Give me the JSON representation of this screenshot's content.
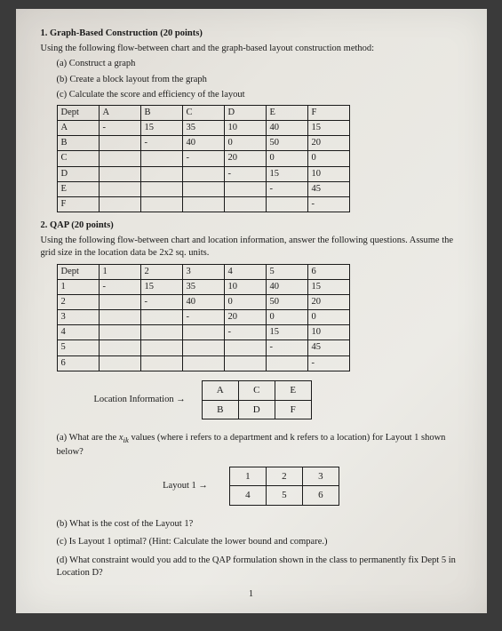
{
  "q1": {
    "number": "1.",
    "title": "Graph-Based Construction (20 points)",
    "intro": "Using the following flow-between chart and the graph-based layout construction method:",
    "parts": {
      "a": "(a) Construct a graph",
      "b": "(b) Create a block layout from the graph",
      "c": "(c) Calculate the score and efficiency of the layout"
    },
    "table": {
      "header": [
        "Dept",
        "A",
        "B",
        "C",
        "D",
        "E",
        "F"
      ],
      "rows": [
        [
          "A",
          "-",
          "15",
          "35",
          "10",
          "40",
          "15"
        ],
        [
          "B",
          "",
          "-",
          "40",
          "0",
          "50",
          "20"
        ],
        [
          "C",
          "",
          "",
          "-",
          "20",
          "0",
          "0"
        ],
        [
          "D",
          "",
          "",
          "",
          "-",
          "15",
          "10"
        ],
        [
          "E",
          "",
          "",
          "",
          "",
          "-",
          "45"
        ],
        [
          "F",
          "",
          "",
          "",
          "",
          "",
          "-"
        ]
      ]
    }
  },
  "q2": {
    "number": "2.",
    "title": "QAP (20 points)",
    "intro": "Using the following flow-between chart and location information, answer the following questions. Assume the grid size in the location data be 2x2 sq. units.",
    "table": {
      "header": [
        "Dept",
        "1",
        "2",
        "3",
        "4",
        "5",
        "6"
      ],
      "rows": [
        [
          "1",
          "-",
          "15",
          "35",
          "10",
          "40",
          "15"
        ],
        [
          "2",
          "",
          "-",
          "40",
          "0",
          "50",
          "20"
        ],
        [
          "3",
          "",
          "",
          "-",
          "20",
          "0",
          "0"
        ],
        [
          "4",
          "",
          "",
          "",
          "-",
          "15",
          "10"
        ],
        [
          "5",
          "",
          "",
          "",
          "",
          "-",
          "45"
        ],
        [
          "6",
          "",
          "",
          "",
          "",
          "",
          "-"
        ]
      ]
    },
    "loc_label": "Location Information →",
    "loc_grid": [
      [
        "A",
        "C",
        "E"
      ],
      [
        "B",
        "D",
        "F"
      ]
    ],
    "parts": {
      "a_pre": "(a) What are the ",
      "a_var": "x",
      "a_sub": "ik",
      "a_post": " values (where i refers to a department and k refers to a location) for Layout 1 shown below?",
      "b": "(b) What is the cost of the Layout 1?",
      "c": "(c) Is Layout 1 optimal?  (Hint:  Calculate the lower bound and compare.)",
      "d": "(d) What constraint would you add to the QAP formulation shown in the class to permanently fix Dept 5 in Location D?"
    },
    "layout_label": "Layout 1 →",
    "layout_grid": [
      [
        "1",
        "2",
        "3"
      ],
      [
        "4",
        "5",
        "6"
      ]
    ]
  },
  "page_number": "1"
}
